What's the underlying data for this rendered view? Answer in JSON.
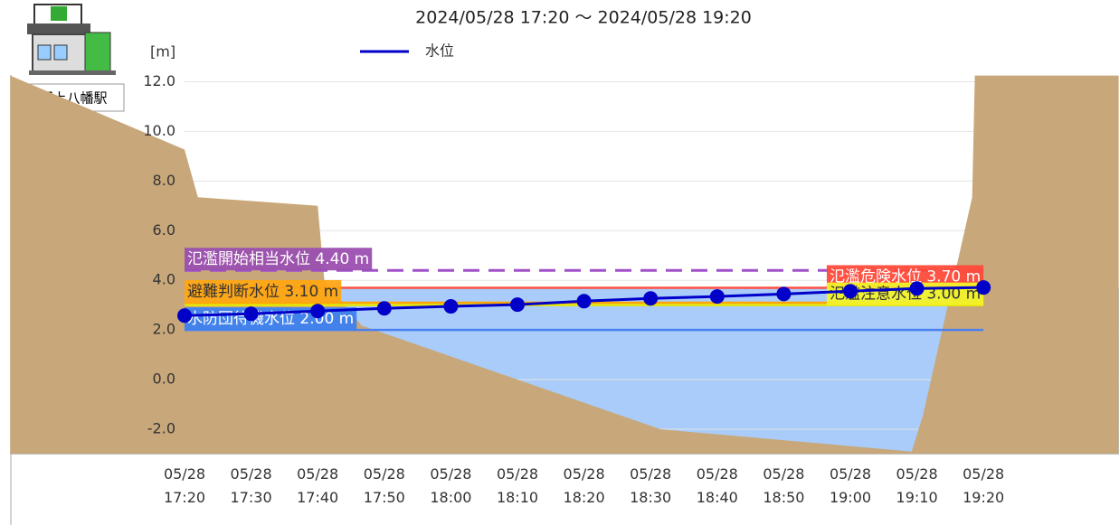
{
  "station": "郡上八幡駅",
  "chart_data": {
    "type": "line",
    "title": "2024/05/28 17:20 ～ 2024/05/28 19:20",
    "y_unit": "[m]",
    "categories": [
      "05/28 17:20",
      "05/28 17:30",
      "05/28 17:40",
      "05/28 17:50",
      "05/28 18:00",
      "05/28 18:10",
      "05/28 18:20",
      "05/28 18:30",
      "05/28 18:40",
      "05/28 18:50",
      "05/28 19:00",
      "05/28 19:10",
      "05/28 19:20"
    ],
    "series": [
      {
        "name": "水位",
        "color": "#0000c8",
        "values": [
          2.58,
          2.65,
          2.76,
          2.87,
          2.95,
          3.02,
          3.16,
          3.27,
          3.35,
          3.45,
          3.56,
          3.67,
          3.71
        ]
      }
    ],
    "ylim": [
      -3,
      12.25
    ],
    "yticks": [
      {
        "value": -2,
        "label": "-2.0"
      },
      {
        "value": 0,
        "label": "0.0"
      },
      {
        "value": 2,
        "label": "2.0"
      },
      {
        "value": 4,
        "label": "4.0"
      },
      {
        "value": 6,
        "label": "6.0"
      },
      {
        "value": 8,
        "label": "8.0"
      },
      {
        "value": 10,
        "label": "10.0"
      },
      {
        "value": 12,
        "label": "12.0"
      }
    ],
    "grid": true,
    "thresholds": [
      {
        "value": 4.4,
        "label": "氾濫開始相当水位 4.40 m",
        "color": "#a050c8",
        "box": "#9b4fb0",
        "text_color": "#fff",
        "dashed": true,
        "side": "left"
      },
      {
        "value": 3.7,
        "label": "氾濫危険水位 3.70 m",
        "color": "#ff5040",
        "box": "#ff4a3a",
        "text_color": "#fff",
        "dashed": false,
        "side": "right"
      },
      {
        "value": 3.1,
        "label": "避難判断水位 3.10 m",
        "color": "#ffa500",
        "box": "#ffa514",
        "text_color": "#333",
        "dashed": false,
        "side": "left"
      },
      {
        "value": 3.0,
        "label": "氾濫注意水位 3.00 m",
        "color": "#e8e800",
        "box": "#f2f22a",
        "text_color": "#333",
        "dashed": false,
        "side": "right"
      },
      {
        "value": 2.0,
        "label": "水防団待機水位 2.00 m",
        "color": "#4a80f0",
        "box": "#3c7ff0",
        "text_color": "#fff",
        "dashed": false,
        "side": "left"
      }
    ],
    "riverbed": {
      "x": [
        -2.62,
        0,
        0.2,
        2.0,
        2.1,
        2.66,
        7.15,
        10.92,
        11.09,
        11.83,
        11.87,
        14.03
      ],
      "y": [
        12.25,
        9.27,
        7.35,
        7.0,
        4.0,
        2.18,
        -2.0,
        -2.9,
        -1.45,
        7.35,
        12.25,
        12.25
      ],
      "color": "#c8a87a"
    },
    "water_color": "#a9ccfa"
  }
}
